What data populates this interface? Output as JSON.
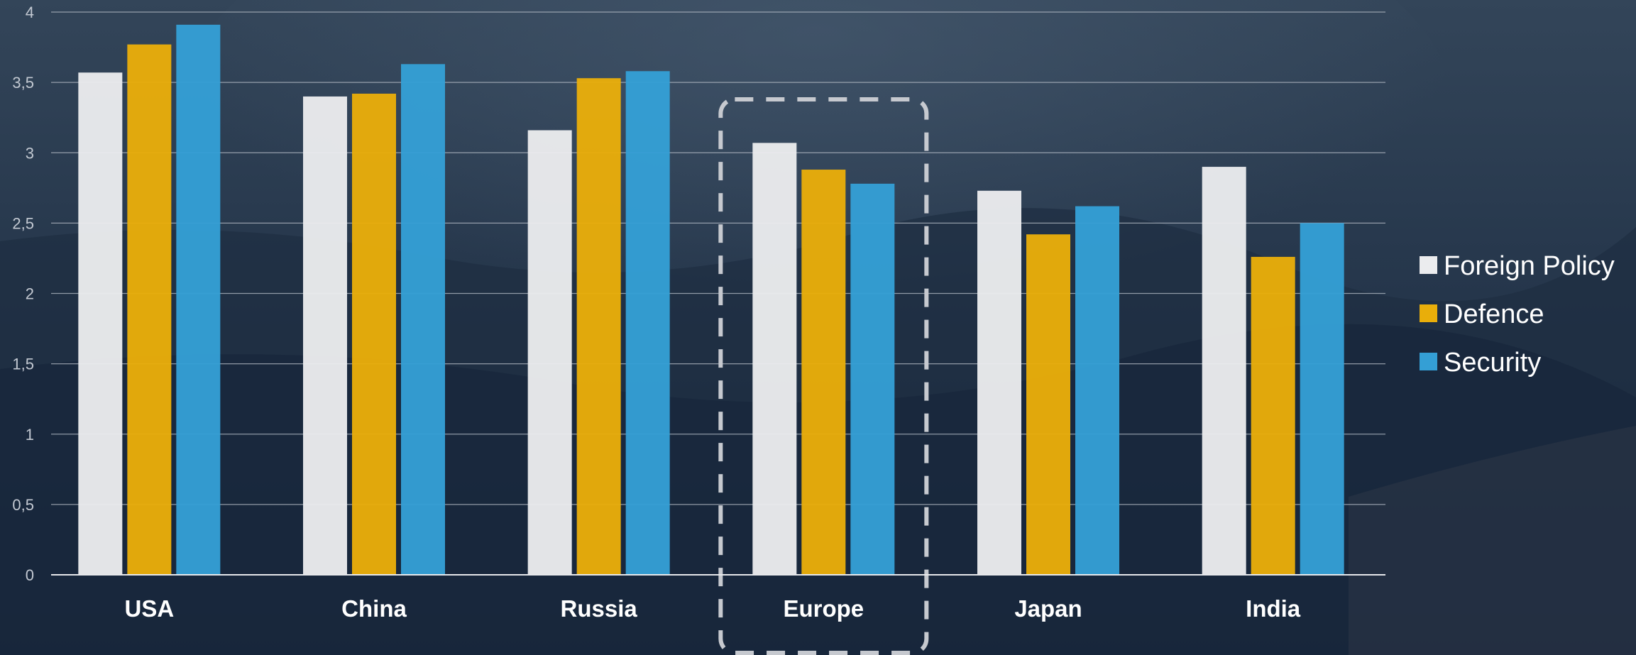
{
  "chart_data": {
    "type": "bar",
    "title": "",
    "xlabel": "",
    "ylabel": "",
    "categories": [
      "USA",
      "China",
      "Russia",
      "Europe",
      "Japan",
      "India"
    ],
    "yticks": [
      "0",
      "0,5",
      "1",
      "1,5",
      "2",
      "2,5",
      "3",
      "3,5",
      "4"
    ],
    "ylim": [
      0,
      4
    ],
    "grid": true,
    "legend_position": "right",
    "highlighted_category": "Europe",
    "series": [
      {
        "name": "Foreign Policy",
        "color": "#ebecee",
        "values": [
          3.57,
          3.4,
          3.16,
          3.07,
          2.73,
          2.9
        ]
      },
      {
        "name": "Defence",
        "color": "#e9ae0a",
        "values": [
          3.77,
          3.42,
          3.53,
          2.88,
          2.42,
          2.26
        ]
      },
      {
        "name": "Security",
        "color": "#349fd5",
        "values": [
          3.91,
          3.63,
          3.58,
          2.78,
          2.62,
          2.5
        ]
      }
    ]
  }
}
